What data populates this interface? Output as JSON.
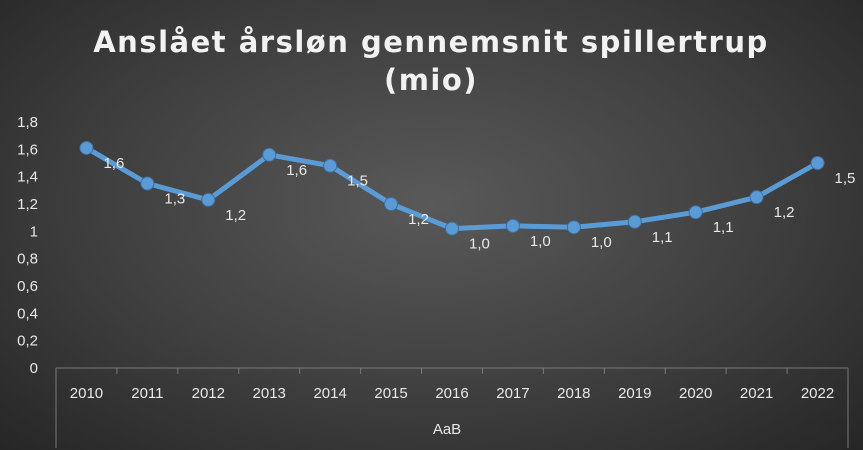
{
  "chart_data": {
    "type": "line",
    "title_line1": "Anslået årsløn gennemsnit spillertrup",
    "title_line2": "(mio)",
    "categories": [
      "2010",
      "2011",
      "2012",
      "2013",
      "2014",
      "2015",
      "2016",
      "2017",
      "2018",
      "2019",
      "2020",
      "2021",
      "2022"
    ],
    "group_label": "AaB",
    "series": [
      {
        "values": [
          1.61,
          1.35,
          1.23,
          1.56,
          1.48,
          1.2,
          1.02,
          1.04,
          1.03,
          1.07,
          1.14,
          1.25,
          1.5
        ],
        "data_labels": [
          "1,6",
          "1,3",
          "1,2",
          "1,6",
          "1,5",
          "1,2",
          "1,0",
          "1,0",
          "1,0",
          "1,1",
          "1,1",
          "1,2",
          "1,5"
        ],
        "color": "#5b9bd5"
      }
    ],
    "ylim": [
      0,
      1.8
    ],
    "yticks": [
      "0",
      "0,2",
      "0,4",
      "0,6",
      "0,8",
      "1",
      "1,2",
      "1,4",
      "1,6",
      "1,8"
    ],
    "grid": false,
    "legend": "none"
  }
}
